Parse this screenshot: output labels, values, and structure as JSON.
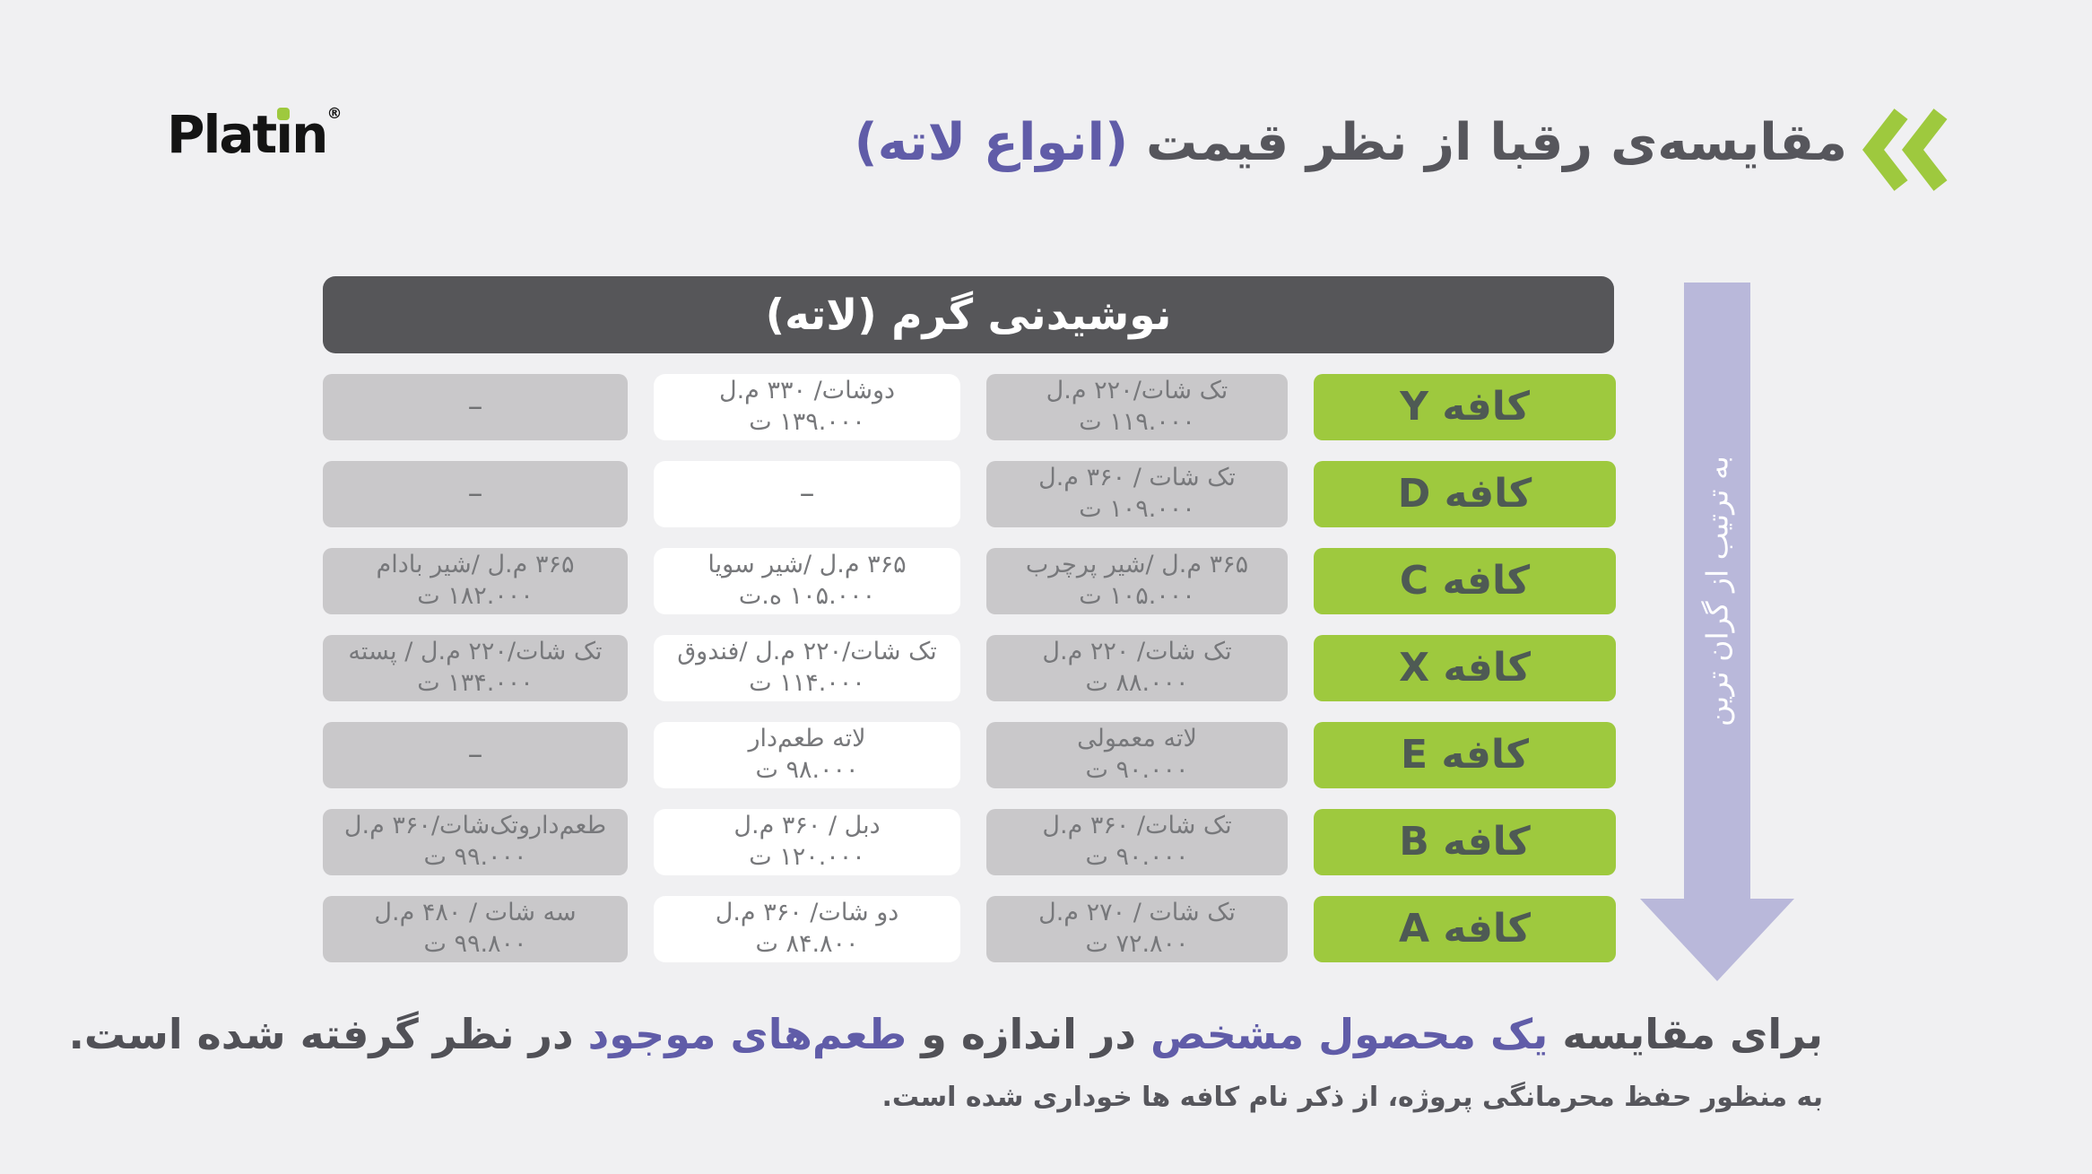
{
  "logo": {
    "part1": "Plat",
    "i_base": "ı",
    "part2": "n",
    "registered": "®"
  },
  "title": {
    "main": "مقایسه‌ی رقبا از نظر قیمت",
    "accent": "(انواع لاته)"
  },
  "table": {
    "header": "نوشیدنی گرم (لاته)",
    "rows": [
      {
        "cafe": "کافه Y",
        "c2": [
          "تک شات/۲۲۰ م.ل",
          "۱۱۹.۰۰۰ ت"
        ],
        "c3": [
          "دوشات/ ۳۳۰ م.ل",
          "۱۳۹.۰۰۰ ت"
        ],
        "c4": [
          "–"
        ]
      },
      {
        "cafe": "کافه D",
        "c2": [
          "تک شات / ۳۶۰ م.ل",
          "۱۰۹.۰۰۰ ت"
        ],
        "c3": [
          "–"
        ],
        "c4": [
          "–"
        ]
      },
      {
        "cafe": "کافه C",
        "c2": [
          "۳۶۵ م.ل /شیر پرچرب",
          "۱۰۵.۰۰۰ ت"
        ],
        "c3": [
          "۳۶۵ م.ل /شیر سویا",
          "۱۰۵.۰۰۰ ه.ت"
        ],
        "c4": [
          "۳۶۵ م.ل /شیر بادام",
          "۱۸۲.۰۰۰ ت"
        ]
      },
      {
        "cafe": "کافه X",
        "c2": [
          "تک شات/ ۲۲۰ م.ل",
          "۸۸.۰۰۰ ت"
        ],
        "c3": [
          "تک شات/۲۲۰ م.ل /فندوق",
          "۱۱۴.۰۰۰ ت"
        ],
        "c4": [
          "تک شات/۲۲۰ م.ل / پسته",
          "۱۳۴.۰۰۰ ت"
        ]
      },
      {
        "cafe": "کافه E",
        "c2": [
          "لاته معمولی",
          "۹۰.۰۰۰ ت"
        ],
        "c3": [
          "لاته طعم‌دار",
          "۹۸.۰۰۰ ت"
        ],
        "c4": [
          "–"
        ]
      },
      {
        "cafe": "کافه B",
        "c2": [
          "تک شات/ ۳۶۰ م.ل",
          "۹۰.۰۰۰ ت"
        ],
        "c3": [
          "دبل / ۳۶۰ م.ل",
          "۱۲۰.۰۰۰ ت"
        ],
        "c4": [
          "طعم‌داروتک‌شات/۳۶۰ م.ل",
          "۹۹.۰۰۰ ت"
        ]
      },
      {
        "cafe": "کافه A",
        "c2": [
          "تک شات / ۲۷۰ م.ل",
          "۷۲.۸۰۰ ت"
        ],
        "c3": [
          "دو شات/ ۳۶۰ م.ل",
          "۸۴.۸۰۰ ت"
        ],
        "c4": [
          "سه شات / ۴۸۰ م.ل",
          "۹۹.۸۰۰ ت"
        ]
      }
    ]
  },
  "arrow": {
    "label": "به ترتیب از گران ترین"
  },
  "footer": {
    "line1_segments": [
      {
        "text": "برای مقایسه ",
        "accent": false
      },
      {
        "text": "یک محصول مشخص",
        "accent": true
      },
      {
        "text": " در اندازه و ",
        "accent": false
      },
      {
        "text": "طعم‌های موجود",
        "accent": true
      },
      {
        "text": " در نظر گرفته شده است.",
        "accent": false
      }
    ],
    "line2": "به منظور حفظ محرمانگی پروژه، از ذکر نام کافه ها خوداری شده است."
  },
  "colors": {
    "background": "#f0f0f2",
    "green": "#9ec93e",
    "purple": "#605ca8",
    "arrow_lavender": "#b9b8da",
    "header_gray": "#565659",
    "cell_gray": "#c9c8ca",
    "cell_text": "#77787b",
    "title_dark": "#56565c",
    "cafe_text": "#4e5a54",
    "footer_dark": "#515157",
    "logo_black": "#141414"
  }
}
